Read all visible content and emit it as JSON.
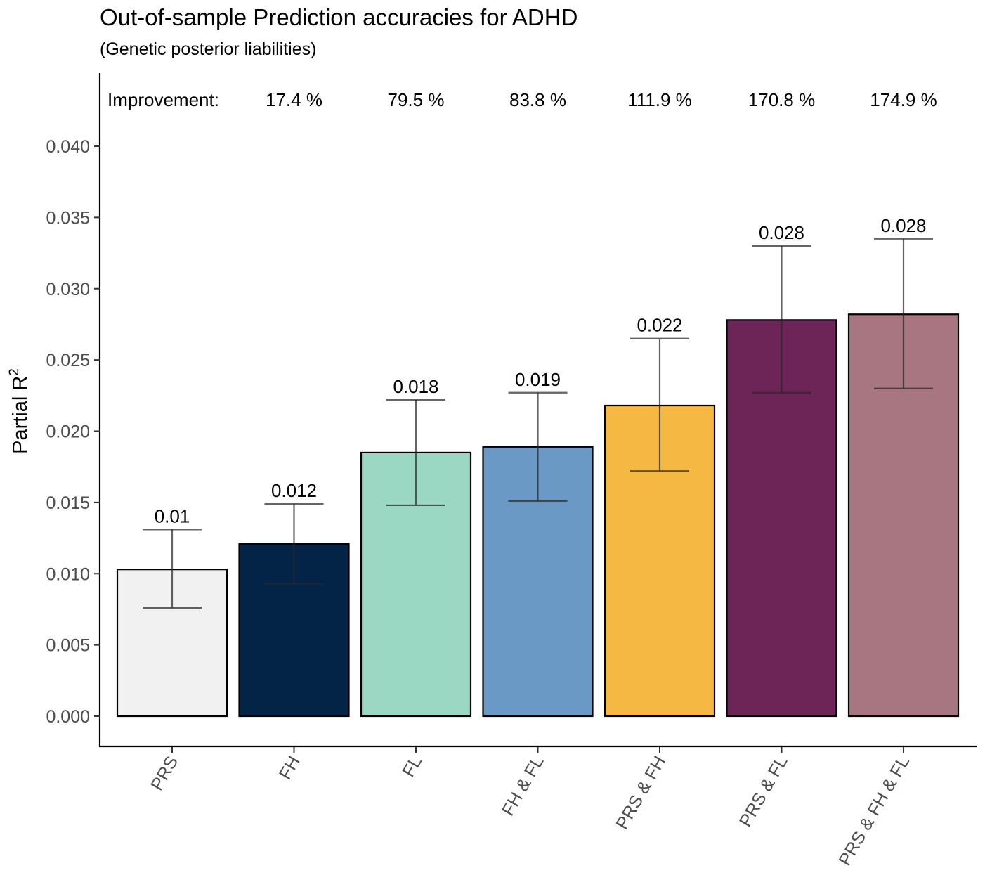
{
  "chart_data": {
    "type": "bar",
    "title": "Out-of-sample Prediction accuracies for ADHD",
    "subtitle": "(Genetic posterior liabilities)",
    "ylabel": "Partial R",
    "ylabel_superscript": "2",
    "xlabel": "",
    "ylim": [
      0,
      0.042
    ],
    "yticks": [
      "0.000",
      "0.005",
      "0.010",
      "0.015",
      "0.020",
      "0.025",
      "0.030",
      "0.035",
      "0.040"
    ],
    "improvement_label": "Improvement:",
    "grid": false,
    "legend": "none",
    "categories": [
      "PRS",
      "FH",
      "FL",
      "FH & FL",
      "PRS & FH",
      "PRS & FL",
      "PRS & FH & FL"
    ],
    "values": [
      0.0103,
      0.0121,
      0.0185,
      0.0189,
      0.0218,
      0.0278,
      0.0282
    ],
    "value_labels": [
      "0.01",
      "0.012",
      "0.018",
      "0.019",
      "0.022",
      "0.028",
      "0.028"
    ],
    "error_low": [
      0.0076,
      0.0093,
      0.0148,
      0.0151,
      0.0172,
      0.0227,
      0.023
    ],
    "error_high": [
      0.0131,
      0.0149,
      0.0222,
      0.0227,
      0.0265,
      0.033,
      0.0335
    ],
    "improvements": [
      "",
      "17.4 %",
      "79.5 %",
      "83.8 %",
      "111.9 %",
      "170.8 %",
      "174.9 %"
    ],
    "colors": [
      "#f0f1f0",
      "#032447",
      "#9bd8c4",
      "#6b99c6",
      "#f5b843",
      "#6c2556",
      "#a77681"
    ]
  }
}
